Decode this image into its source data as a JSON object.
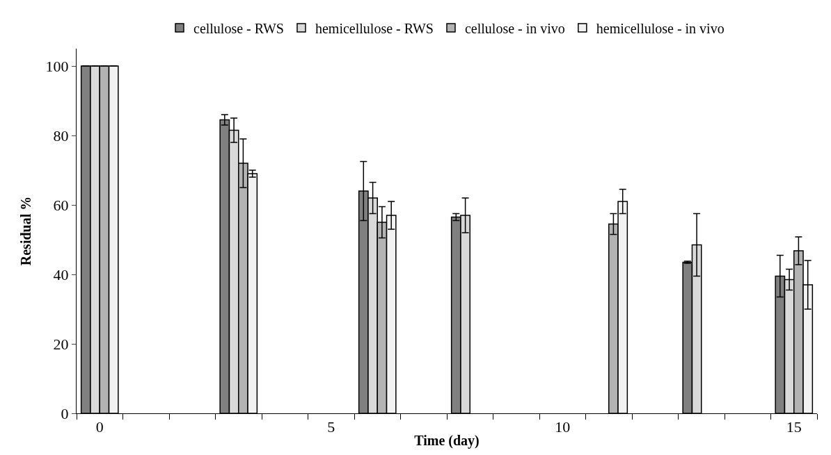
{
  "chart_data": {
    "type": "bar",
    "xlabel": "Time (day)",
    "ylabel": "Residual %",
    "categories": [
      "0",
      null,
      null,
      null,
      null,
      "5",
      null,
      null,
      null,
      null,
      "10",
      null,
      null,
      null,
      null,
      "15"
    ],
    "ylim": [
      0,
      105
    ],
    "yticks": [
      0,
      20,
      40,
      60,
      80,
      100
    ],
    "legend": "top",
    "series": [
      {
        "name": "cellulose - RWS",
        "color": "#808080",
        "values": [
          100,
          null,
          null,
          84.5,
          null,
          null,
          64,
          null,
          56.5,
          null,
          null,
          null,
          null,
          43.5,
          null,
          39.5
        ],
        "errors": [
          null,
          null,
          null,
          1.5,
          null,
          null,
          8.5,
          null,
          1,
          null,
          null,
          null,
          null,
          0.3,
          null,
          6
        ]
      },
      {
        "name": "hemicellulose - RWS",
        "color": "#d9d9d9",
        "values": [
          100,
          null,
          null,
          81.5,
          null,
          null,
          62,
          null,
          57,
          null,
          null,
          null,
          null,
          48.5,
          null,
          38.5
        ],
        "errors": [
          null,
          null,
          null,
          3.5,
          null,
          null,
          4.5,
          null,
          5,
          null,
          null,
          null,
          null,
          9,
          null,
          3
        ]
      },
      {
        "name": "cellulose - in vivo",
        "color": "#b3b3b3",
        "values": [
          100,
          null,
          null,
          72,
          null,
          null,
          55,
          null,
          null,
          null,
          null,
          54.5,
          null,
          null,
          null,
          46.8
        ],
        "errors": [
          null,
          null,
          null,
          7,
          null,
          null,
          4.5,
          null,
          null,
          null,
          null,
          3,
          null,
          null,
          null,
          4
        ]
      },
      {
        "name": "hemicellulose - in vivo",
        "color": "#f2f2f2",
        "values": [
          100,
          null,
          null,
          69,
          null,
          null,
          57,
          null,
          null,
          null,
          null,
          61,
          null,
          null,
          null,
          37
        ],
        "errors": [
          null,
          null,
          null,
          1,
          null,
          null,
          4,
          null,
          null,
          null,
          null,
          3.5,
          null,
          null,
          null,
          7
        ]
      }
    ]
  }
}
